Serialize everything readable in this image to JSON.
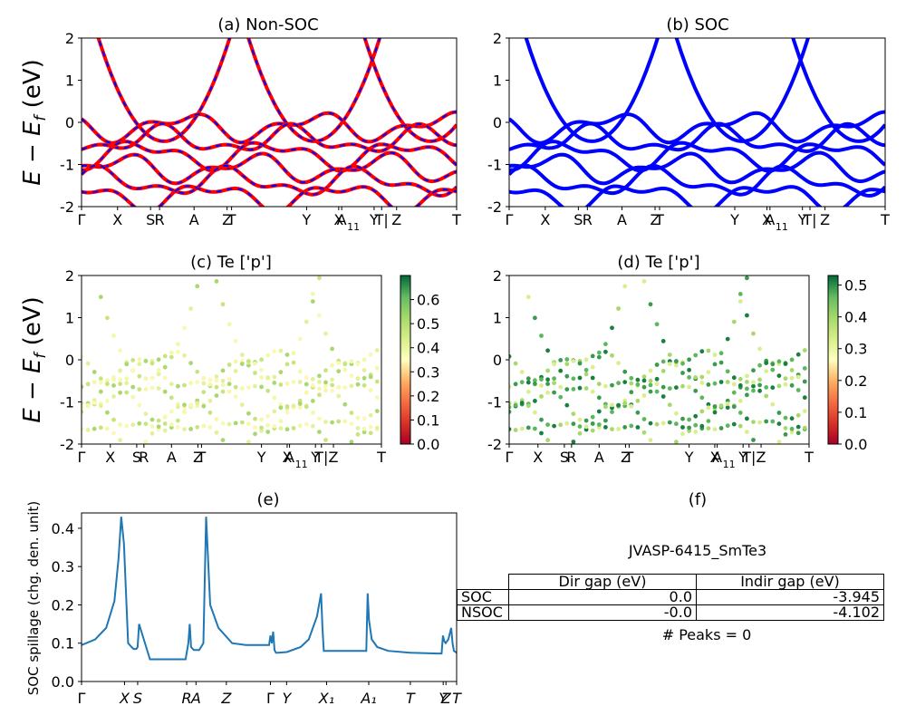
{
  "panels": {
    "a": {
      "title": "(a) Non-SOC",
      "ylabel": "E − E",
      "ylabel_sub": "f",
      "ylabel_unit": " (eV)",
      "ylim": [
        -2,
        2
      ],
      "yticks": [
        -2,
        -1,
        0,
        1,
        2
      ]
    },
    "b": {
      "title": "(b) SOC",
      "ylim": [
        -2,
        2
      ],
      "yticks": [
        -2,
        -1,
        0,
        1,
        2
      ]
    },
    "c": {
      "title": "(c)  Te ['p']",
      "ylabel": "E − E",
      "ylabel_sub": "f",
      "ylabel_unit": " (eV)",
      "colorbar_ticks": [
        "0.0",
        "0.1",
        "0.2",
        "0.3",
        "0.4",
        "0.5",
        "0.6"
      ],
      "colorbar_max": 0.7
    },
    "d": {
      "title": "(d) Te ['p']",
      "colorbar_ticks": [
        "0.0",
        "0.1",
        "0.2",
        "0.3",
        "0.4",
        "0.5"
      ],
      "colorbar_max": 0.53
    },
    "e": {
      "title": "(e)",
      "ylabel": "SOC spillage (chg. den. unit)",
      "yticks": [
        "0.0",
        "0.1",
        "0.2",
        "0.3",
        "0.4"
      ]
    },
    "f": {
      "title": "(f)"
    }
  },
  "kpath_labels": [
    {
      "label": "Γ",
      "x": 0.0
    },
    {
      "label": "X",
      "x": 0.12
    },
    {
      "label": "S",
      "x": 0.23
    },
    {
      "label": "R",
      "x": 0.26
    },
    {
      "label": "A",
      "x": 0.375
    },
    {
      "label": "Z",
      "x": 0.485
    },
    {
      "label": "T",
      "x": 0.5
    },
    {
      "label": "Y",
      "x": 0.75
    },
    {
      "label": "X",
      "x": 0.857
    },
    {
      "label": "A",
      "x": 0.867
    },
    {
      "label": "Y",
      "x": 0.975
    },
    {
      "label": "T|",
      "x": 1.0
    },
    {
      "label": "Z",
      "x": 1.05
    },
    {
      "label": "T",
      "x": 1.25
    }
  ],
  "chart_data": [
    {
      "type": "line",
      "title": "(e)",
      "ylabel": "SOC spillage (chg. den. unit)",
      "ylim": [
        0.0,
        0.44
      ],
      "xticks": [
        "Γ",
        "X",
        "S",
        "R",
        "A",
        "Z",
        "Γ",
        "Y",
        "X₁",
        "A₁",
        "T",
        "Y",
        "Z",
        "T"
      ],
      "xtick_pos": [
        0,
        0.157,
        0.205,
        0.384,
        0.418,
        0.529,
        0.69,
        0.749,
        0.895,
        1.049,
        1.201,
        1.321,
        1.331,
        1.37
      ],
      "x": [
        0.0,
        0.05,
        0.09,
        0.12,
        0.135,
        0.145,
        0.155,
        0.17,
        0.18,
        0.19,
        0.2,
        0.205,
        0.21,
        0.25,
        0.3,
        0.35,
        0.38,
        0.39,
        0.395,
        0.4,
        0.41,
        0.43,
        0.445,
        0.455,
        0.47,
        0.5,
        0.55,
        0.6,
        0.65,
        0.685,
        0.69,
        0.695,
        0.7,
        0.705,
        0.71,
        0.72,
        0.75,
        0.8,
        0.83,
        0.86,
        0.875,
        0.88,
        0.885,
        0.95,
        1.0,
        1.04,
        1.045,
        1.05,
        1.06,
        1.08,
        1.12,
        1.2,
        1.3,
        1.315,
        1.32,
        1.325,
        1.33,
        1.34,
        1.35,
        1.355,
        1.36,
        1.37
      ],
      "y": [
        0.095,
        0.11,
        0.14,
        0.21,
        0.32,
        0.43,
        0.36,
        0.1,
        0.092,
        0.085,
        0.085,
        0.09,
        0.15,
        0.058,
        0.058,
        0.058,
        0.058,
        0.1,
        0.15,
        0.09,
        0.082,
        0.082,
        0.1,
        0.43,
        0.2,
        0.14,
        0.1,
        0.095,
        0.095,
        0.095,
        0.12,
        0.1,
        0.13,
        0.082,
        0.075,
        0.075,
        0.077,
        0.09,
        0.11,
        0.17,
        0.23,
        0.14,
        0.08,
        0.08,
        0.08,
        0.08,
        0.23,
        0.16,
        0.11,
        0.09,
        0.08,
        0.075,
        0.073,
        0.073,
        0.12,
        0.105,
        0.1,
        0.11,
        0.14,
        0.1,
        0.08,
        0.075
      ]
    }
  ],
  "table": {
    "title": "JVASP-6415_SmTe3",
    "header": [
      "",
      "Dir gap (eV)",
      "Indir gap (eV)"
    ],
    "rows": [
      [
        "SOC",
        "0.0",
        "-3.945"
      ],
      [
        "NSOC",
        "-0.0",
        "-4.102"
      ]
    ],
    "footer": "# Peaks = 0"
  },
  "colors": {
    "nonsoc_line": "#ff0000",
    "nonsoc_dash": "#0000ff",
    "soc_line": "#0000ff",
    "spillage_line": "#1f77b4"
  }
}
